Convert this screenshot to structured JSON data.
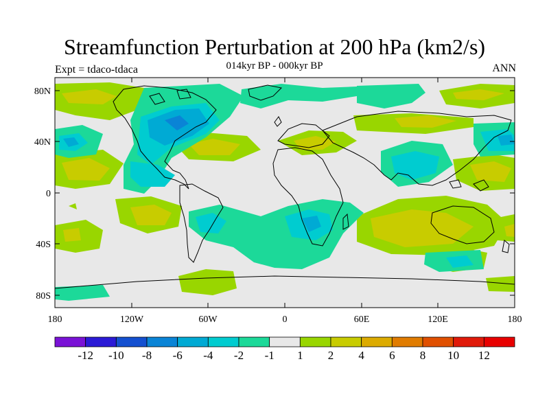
{
  "title": "Streamfunction Perturbation at 200 hPa (km2/s)",
  "subtitle_center": "014kyr BP - 000kyr BP",
  "subtitle_left": "Expt = tdaco-tdaca",
  "subtitle_right": "ANN",
  "lat_labels": [
    "80N",
    "40N",
    "0",
    "40S",
    "80S"
  ],
  "lon_labels": [
    "180",
    "120W",
    "60W",
    "0",
    "60E",
    "120E",
    "180"
  ],
  "colorbar": {
    "labels": [
      "-12",
      "-10",
      "-8",
      "-6",
      "-4",
      "-2",
      "-1",
      "1",
      "2",
      "4",
      "6",
      "8",
      "10",
      "12"
    ],
    "colors": [
      "#7a12d6",
      "#2b1ad6",
      "#1450d0",
      "#0a84d6",
      "#00aad4",
      "#00ccd0",
      "#1cd999",
      "#e8e8e8",
      "#99d600",
      "#c8cc00",
      "#dcab00",
      "#e07c00",
      "#e05000",
      "#e01a0a",
      "#e80000"
    ]
  },
  "fills": {
    "background": "#e8e8e8",
    "pos1": "#99d600",
    "pos2": "#c8cc00",
    "neg1": "#1cd999",
    "neg2": "#00ccd0",
    "neg3": "#00aad4",
    "neg4": "#0a84d6"
  }
}
